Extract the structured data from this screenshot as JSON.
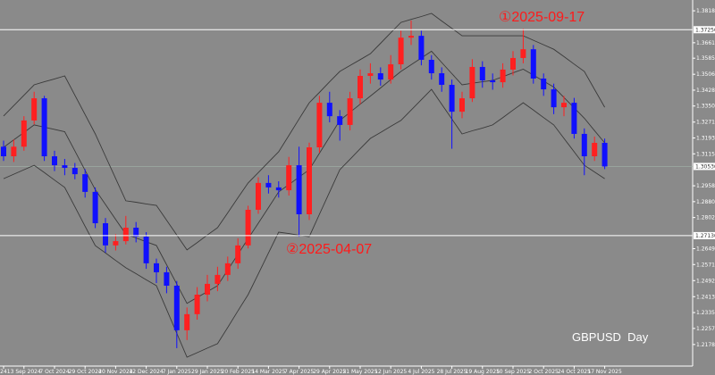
{
  "chart_data": {
    "type": "candlestick",
    "title": "GBPUSD  Day",
    "annotations": [
      "①2025-09-17",
      "②2025-04-07"
    ],
    "up_color": "#ff2020",
    "down_color": "#1010ff",
    "band_color": "#3a3a3a",
    "categories": [
      "24",
      null,
      "13 Sep 2024",
      null,
      null,
      "7 Oct 2024",
      null,
      null,
      "29 Oct 2024",
      null,
      null,
      "20 Nov 2024",
      null,
      null,
      "12 Dec 2024",
      null,
      null,
      "7 Jan 2025",
      null,
      null,
      "29 Jan 2025",
      null,
      null,
      "20 Feb 2025",
      null,
      null,
      "14 Mar 2025",
      null,
      null,
      "7 Apr 2025",
      null,
      null,
      "29 Apr 2025",
      null,
      null,
      "21 May 2025",
      null,
      null,
      "12 Jun 2025",
      null,
      null,
      "4 Jul 2025",
      null,
      null,
      "28 Jul 2025",
      null,
      null,
      "19 Aug 2025",
      null,
      null,
      "10 Sep 2025",
      null,
      null,
      "2 Oct 2025",
      null,
      null,
      "24 Oct 2025",
      null,
      null,
      "17 Nov 2025"
    ],
    "open": [
      1.315,
      1.3103,
      1.315,
      1.3279,
      1.3388,
      1.3103,
      1.3059,
      1.3046,
      1.3015,
      1.2928,
      1.2774,
      1.2665,
      1.2686,
      1.2752,
      1.2708,
      1.2577,
      1.2533,
      1.2467,
      1.2248,
      1.2327,
      1.2423,
      1.2476,
      1.252,
      1.2577,
      1.2665,
      1.284,
      1.2972,
      1.295,
      1.2936,
      1.3059,
      1.2818,
      1.3147,
      1.3366,
      1.33,
      1.3257,
      1.3388,
      1.3498,
      1.3511,
      1.348,
      1.3555,
      1.3686,
      1.3695,
      1.3577,
      1.3511,
      1.3454,
      1.3322,
      1.3388,
      1.3542,
      1.3476,
      1.3467,
      1.3529,
      1.3586,
      1.3629,
      1.3485,
      1.3432,
      1.3344,
      1.3366,
      1.3213,
      1.3103,
      1.3169
    ],
    "high": [
      1.318,
      1.3185,
      1.33,
      1.342,
      1.34,
      1.313,
      1.309,
      1.307,
      1.304,
      1.295,
      1.28,
      1.272,
      1.281,
      1.278,
      1.273,
      1.26,
      1.256,
      1.249,
      1.236,
      1.246,
      1.252,
      1.256,
      1.261,
      1.27,
      1.286,
      1.3,
      1.301,
      1.298,
      1.31,
      1.315,
      1.317,
      1.34,
      1.342,
      1.333,
      1.342,
      1.353,
      1.356,
      1.354,
      1.36,
      1.372,
      1.377,
      1.372,
      1.36,
      1.354,
      1.348,
      1.342,
      1.358,
      1.357,
      1.351,
      1.356,
      1.362,
      1.373,
      1.365,
      1.351,
      1.346,
      1.34,
      1.339,
      1.324,
      1.32,
      1.319
    ],
    "low": [
      1.308,
      1.3075,
      1.313,
      1.326,
      1.308,
      1.303,
      1.301,
      1.299,
      1.29,
      1.275,
      1.263,
      1.264,
      1.267,
      1.268,
      1.255,
      1.248,
      1.243,
      1.216,
      1.22,
      1.23,
      1.239,
      1.244,
      1.249,
      1.255,
      1.265,
      1.282,
      1.292,
      1.29,
      1.291,
      1.2708,
      1.279,
      1.312,
      1.327,
      1.318,
      1.323,
      1.336,
      1.346,
      1.345,
      1.346,
      1.353,
      1.365,
      1.355,
      1.348,
      1.342,
      1.314,
      1.329,
      1.337,
      1.344,
      1.343,
      1.344,
      1.35,
      1.356,
      1.346,
      1.34,
      1.331,
      1.33,
      1.319,
      1.301,
      1.308,
      1.304
    ],
    "close": [
      1.3103,
      1.315,
      1.3279,
      1.3388,
      1.3103,
      1.3059,
      1.3046,
      1.3015,
      1.2928,
      1.2774,
      1.2665,
      1.2686,
      1.2752,
      1.2708,
      1.2577,
      1.2533,
      1.2467,
      1.2248,
      1.2327,
      1.2423,
      1.2476,
      1.252,
      1.2577,
      1.2665,
      1.284,
      1.2972,
      1.295,
      1.2936,
      1.3059,
      1.2818,
      1.3147,
      1.3366,
      1.33,
      1.3257,
      1.3388,
      1.3498,
      1.3511,
      1.348,
      1.3555,
      1.3686,
      1.3695,
      1.3577,
      1.3511,
      1.3454,
      1.3322,
      1.3388,
      1.3542,
      1.3476,
      1.3467,
      1.3529,
      1.3586,
      1.3629,
      1.3485,
      1.3432,
      1.3344,
      1.3366,
      1.3213,
      1.3103,
      1.3169,
      1.3053
    ],
    "bands": [
      {
        "values": [
          1.3301,
          1.3352,
          1.3403,
          1.3454,
          1.3469,
          1.3483,
          1.3498,
          1.3403,
          1.3308,
          1.3213,
          1.3103,
          1.2994,
          1.2884,
          1.2877,
          1.2869,
          1.2862,
          1.2789,
          1.2716,
          1.2643,
          1.2679,
          1.2716,
          1.2752,
          1.2825,
          1.2899,
          1.2972,
          1.3023,
          1.3074,
          1.3125,
          1.3205,
          1.3286,
          1.3366,
          1.3417,
          1.3469,
          1.352,
          1.3549,
          1.3578,
          1.3607,
          1.3658,
          1.371,
          1.3761,
          1.3776,
          1.379,
          1.3805,
          1.3768,
          1.3732,
          1.3695,
          1.3695,
          1.3695,
          1.3695,
          1.3695,
          1.3695,
          1.3695,
          1.3673,
          1.3651,
          1.3629,
          1.3593,
          1.3556,
          1.352,
          1.3432,
          1.3344
        ]
      },
      {
        "values": [
          1.3147,
          1.3184,
          1.322,
          1.3257,
          1.3246,
          1.3235,
          1.3224,
          1.3129,
          1.3034,
          1.2939,
          1.2866,
          1.2793,
          1.272,
          1.2702,
          1.2683,
          1.2665,
          1.257,
          1.2475,
          1.238,
          1.2409,
          1.2438,
          1.2467,
          1.2544,
          1.2621,
          1.2698,
          1.2774,
          1.2851,
          1.2928,
          1.2964,
          1.3001,
          1.3037,
          1.3118,
          1.3198,
          1.3279,
          1.3319,
          1.3359,
          1.3399,
          1.3439,
          1.348,
          1.352,
          1.3553,
          1.3586,
          1.3619,
          1.3564,
          1.3509,
          1.3454,
          1.3462,
          1.3469,
          1.3476,
          1.3494,
          1.3513,
          1.3531,
          1.3502,
          1.3472,
          1.3443,
          1.3392,
          1.3341,
          1.329,
          1.3229,
          1.3169
        ]
      },
      {
        "values": [
          1.2993,
          1.3015,
          1.3037,
          1.3059,
          1.3023,
          1.2986,
          1.295,
          1.2855,
          1.2759,
          1.2664,
          1.2628,
          1.2591,
          1.2555,
          1.2526,
          1.2496,
          1.2467,
          1.235,
          1.2233,
          1.2116,
          1.2138,
          1.216,
          1.2182,
          1.2262,
          1.2343,
          1.2423,
          1.2525,
          1.2628,
          1.273,
          1.2723,
          1.2715,
          1.2708,
          1.2818,
          1.2927,
          1.3037,
          1.3088,
          1.314,
          1.3191,
          1.322,
          1.325,
          1.3279,
          1.333,
          1.3381,
          1.3432,
          1.3359,
          1.3286,
          1.3213,
          1.3228,
          1.3242,
          1.3257,
          1.3293,
          1.333,
          1.3366,
          1.333,
          1.3293,
          1.3257,
          1.3191,
          1.3125,
          1.3059,
          1.3026,
          1.2993
        ]
      }
    ],
    "ylim": [
      1.2072,
      1.3871
    ],
    "yticks": [
      {
        "value": 1.3818,
        "label": "1.38180"
      },
      {
        "value": 1.3661,
        "label": "1.36610"
      },
      {
        "value": 1.3585,
        "label": "1.35850"
      },
      {
        "value": 1.3506,
        "label": "1.35060"
      },
      {
        "value": 1.3428,
        "label": "1.34280"
      },
      {
        "value": 1.335,
        "label": "1.33500"
      },
      {
        "value": 1.3271,
        "label": "1.32710"
      },
      {
        "value": 1.3193,
        "label": "1.31930"
      },
      {
        "value": 1.3115,
        "label": "1.31150"
      },
      {
        "value": 1.2958,
        "label": "1.29580"
      },
      {
        "value": 1.288,
        "label": "1.28800"
      },
      {
        "value": 1.2802,
        "label": "1.28020"
      },
      {
        "value": 1.2649,
        "label": "1.26490"
      },
      {
        "value": 1.2571,
        "label": "1.25710"
      },
      {
        "value": 1.2492,
        "label": "1.24920"
      },
      {
        "value": 1.2413,
        "label": "1.24130"
      },
      {
        "value": 1.2335,
        "label": "1.23350"
      },
      {
        "value": 1.2257,
        "label": "1.22570"
      },
      {
        "value": 1.2178,
        "label": "1.21780"
      }
    ],
    "hlines": [
      {
        "value": 1.3725,
        "label": "1.37250"
      },
      {
        "value": 1.2713,
        "label": "1.27130"
      }
    ],
    "current_price": {
      "value": 1.3053,
      "label": "1.30530"
    }
  }
}
